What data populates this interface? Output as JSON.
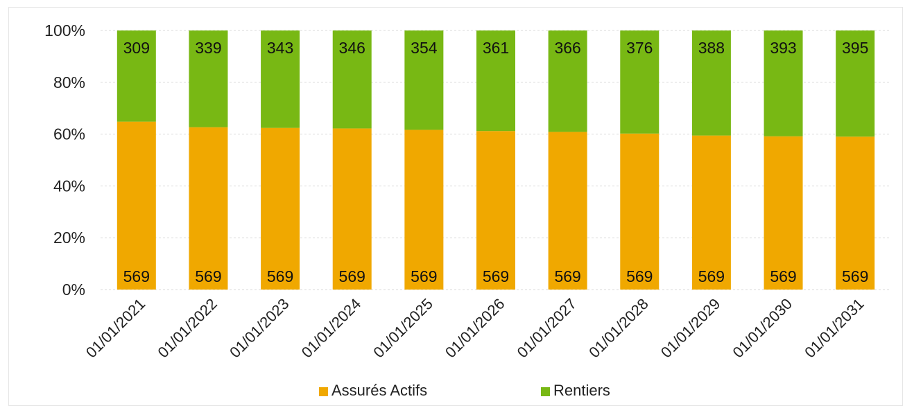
{
  "chart_data": {
    "type": "bar",
    "stacked": true,
    "normalized": true,
    "categories": [
      "01/01/2021",
      "01/01/2022",
      "01/01/2023",
      "01/01/2024",
      "01/01/2025",
      "01/01/2026",
      "01/01/2027",
      "01/01/2028",
      "01/01/2029",
      "01/01/2030",
      "01/01/2031"
    ],
    "series": [
      {
        "name": "Assurés Actifs",
        "color": "#F0A800",
        "values": [
          569,
          569,
          569,
          569,
          569,
          569,
          569,
          569,
          569,
          569,
          569
        ]
      },
      {
        "name": "Rentiers",
        "color": "#78B814",
        "values": [
          309,
          339,
          343,
          346,
          354,
          361,
          366,
          376,
          388,
          393,
          395
        ]
      }
    ],
    "yticks": [
      "0%",
      "20%",
      "40%",
      "60%",
      "80%",
      "100%"
    ],
    "ylim": [
      0,
      100
    ],
    "grid": true,
    "legend": "bottom",
    "title": "",
    "xlabel": "",
    "ylabel": ""
  }
}
